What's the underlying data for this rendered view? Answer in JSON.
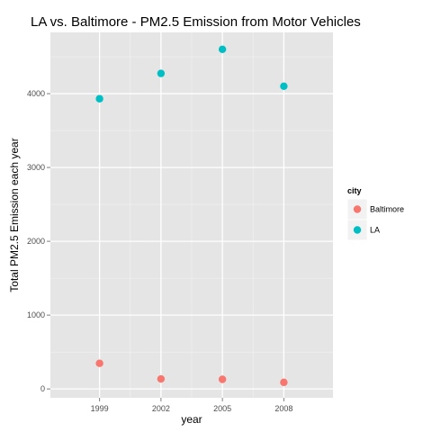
{
  "chart_data": {
    "type": "scatter",
    "title": "LA vs. Baltimore - PM2.5 Emission from Motor Vehicles",
    "xlabel": "year",
    "ylabel": "Total PM2.5 Emission each year",
    "categories": [
      "1999",
      "2002",
      "2005",
      "2008"
    ],
    "y_ticks": [
      0,
      1000,
      2000,
      3000,
      4000
    ],
    "ylim": [
      -120,
      4830
    ],
    "grid": true,
    "legend": {
      "title": "city",
      "position": "right"
    },
    "series": [
      {
        "name": "Baltimore",
        "color": "#f8766d",
        "values": [
          347,
          135,
          130,
          89
        ]
      },
      {
        "name": "LA",
        "color": "#00bfc4",
        "values": [
          3931,
          4274,
          4601,
          4101
        ]
      }
    ]
  }
}
